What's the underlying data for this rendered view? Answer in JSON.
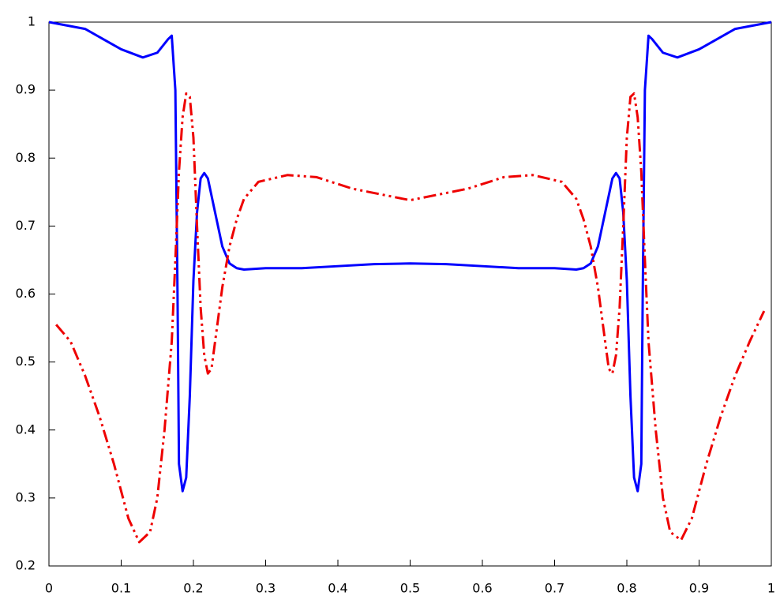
{
  "chart_data": {
    "type": "line",
    "xlim": [
      0,
      1
    ],
    "ylim": [
      0.2,
      1
    ],
    "xticks": [
      0,
      0.1,
      0.2,
      0.3,
      0.4,
      0.5,
      0.6,
      0.7,
      0.8,
      0.9,
      1
    ],
    "yticks": [
      0.2,
      0.3,
      0.4,
      0.5,
      0.6,
      0.7,
      0.8,
      0.9,
      1
    ],
    "grid": false,
    "series": [
      {
        "color": "#0000ff",
        "dash": "solid",
        "x": [
          0,
          0.05,
          0.1,
          0.13,
          0.15,
          0.165,
          0.17,
          0.175,
          0.178,
          0.18,
          0.185,
          0.19,
          0.195,
          0.2,
          0.205,
          0.21,
          0.215,
          0.22,
          0.23,
          0.24,
          0.25,
          0.26,
          0.27,
          0.3,
          0.35,
          0.4,
          0.45,
          0.5,
          0.55,
          0.6,
          0.65,
          0.7,
          0.73,
          0.74,
          0.75,
          0.76,
          0.77,
          0.78,
          0.785,
          0.79,
          0.795,
          0.8,
          0.805,
          0.81,
          0.815,
          0.82,
          0.822,
          0.825,
          0.83,
          0.835,
          0.85,
          0.87,
          0.9,
          0.95,
          1
        ],
        "values": [
          1,
          0.99,
          0.96,
          0.948,
          0.955,
          0.975,
          0.98,
          0.9,
          0.6,
          0.35,
          0.31,
          0.33,
          0.45,
          0.62,
          0.72,
          0.77,
          0.778,
          0.77,
          0.72,
          0.67,
          0.645,
          0.638,
          0.636,
          0.638,
          0.638,
          0.641,
          0.644,
          0.645,
          0.644,
          0.641,
          0.638,
          0.638,
          0.636,
          0.638,
          0.645,
          0.67,
          0.72,
          0.77,
          0.778,
          0.77,
          0.72,
          0.62,
          0.45,
          0.33,
          0.31,
          0.35,
          0.6,
          0.9,
          0.98,
          0.975,
          0.955,
          0.948,
          0.96,
          0.99,
          1
        ]
      },
      {
        "color": "#ee0000",
        "dash": "dash-dot-dot",
        "x": [
          0.01,
          0.03,
          0.05,
          0.07,
          0.09,
          0.11,
          0.125,
          0.14,
          0.15,
          0.16,
          0.17,
          0.175,
          0.18,
          0.185,
          0.19,
          0.195,
          0.2,
          0.205,
          0.21,
          0.215,
          0.22,
          0.225,
          0.23,
          0.24,
          0.25,
          0.26,
          0.27,
          0.29,
          0.33,
          0.37,
          0.42,
          0.5,
          0.58,
          0.63,
          0.67,
          0.71,
          0.73,
          0.74,
          0.75,
          0.76,
          0.77,
          0.775,
          0.78,
          0.785,
          0.79,
          0.795,
          0.8,
          0.805,
          0.81,
          0.815,
          0.82,
          0.825,
          0.83,
          0.84,
          0.85,
          0.86,
          0.875,
          0.89,
          0.91,
          0.93,
          0.95,
          0.97,
          0.99
        ],
        "values": [
          0.555,
          0.53,
          0.48,
          0.42,
          0.35,
          0.27,
          0.235,
          0.25,
          0.3,
          0.4,
          0.53,
          0.65,
          0.78,
          0.86,
          0.895,
          0.89,
          0.83,
          0.7,
          0.58,
          0.51,
          0.483,
          0.49,
          0.53,
          0.61,
          0.67,
          0.71,
          0.74,
          0.765,
          0.775,
          0.772,
          0.755,
          0.738,
          0.755,
          0.772,
          0.775,
          0.765,
          0.74,
          0.71,
          0.67,
          0.61,
          0.53,
          0.49,
          0.483,
          0.51,
          0.58,
          0.7,
          0.83,
          0.89,
          0.895,
          0.86,
          0.78,
          0.65,
          0.53,
          0.4,
          0.3,
          0.25,
          0.238,
          0.27,
          0.35,
          0.42,
          0.48,
          0.53,
          0.575
        ]
      }
    ]
  }
}
